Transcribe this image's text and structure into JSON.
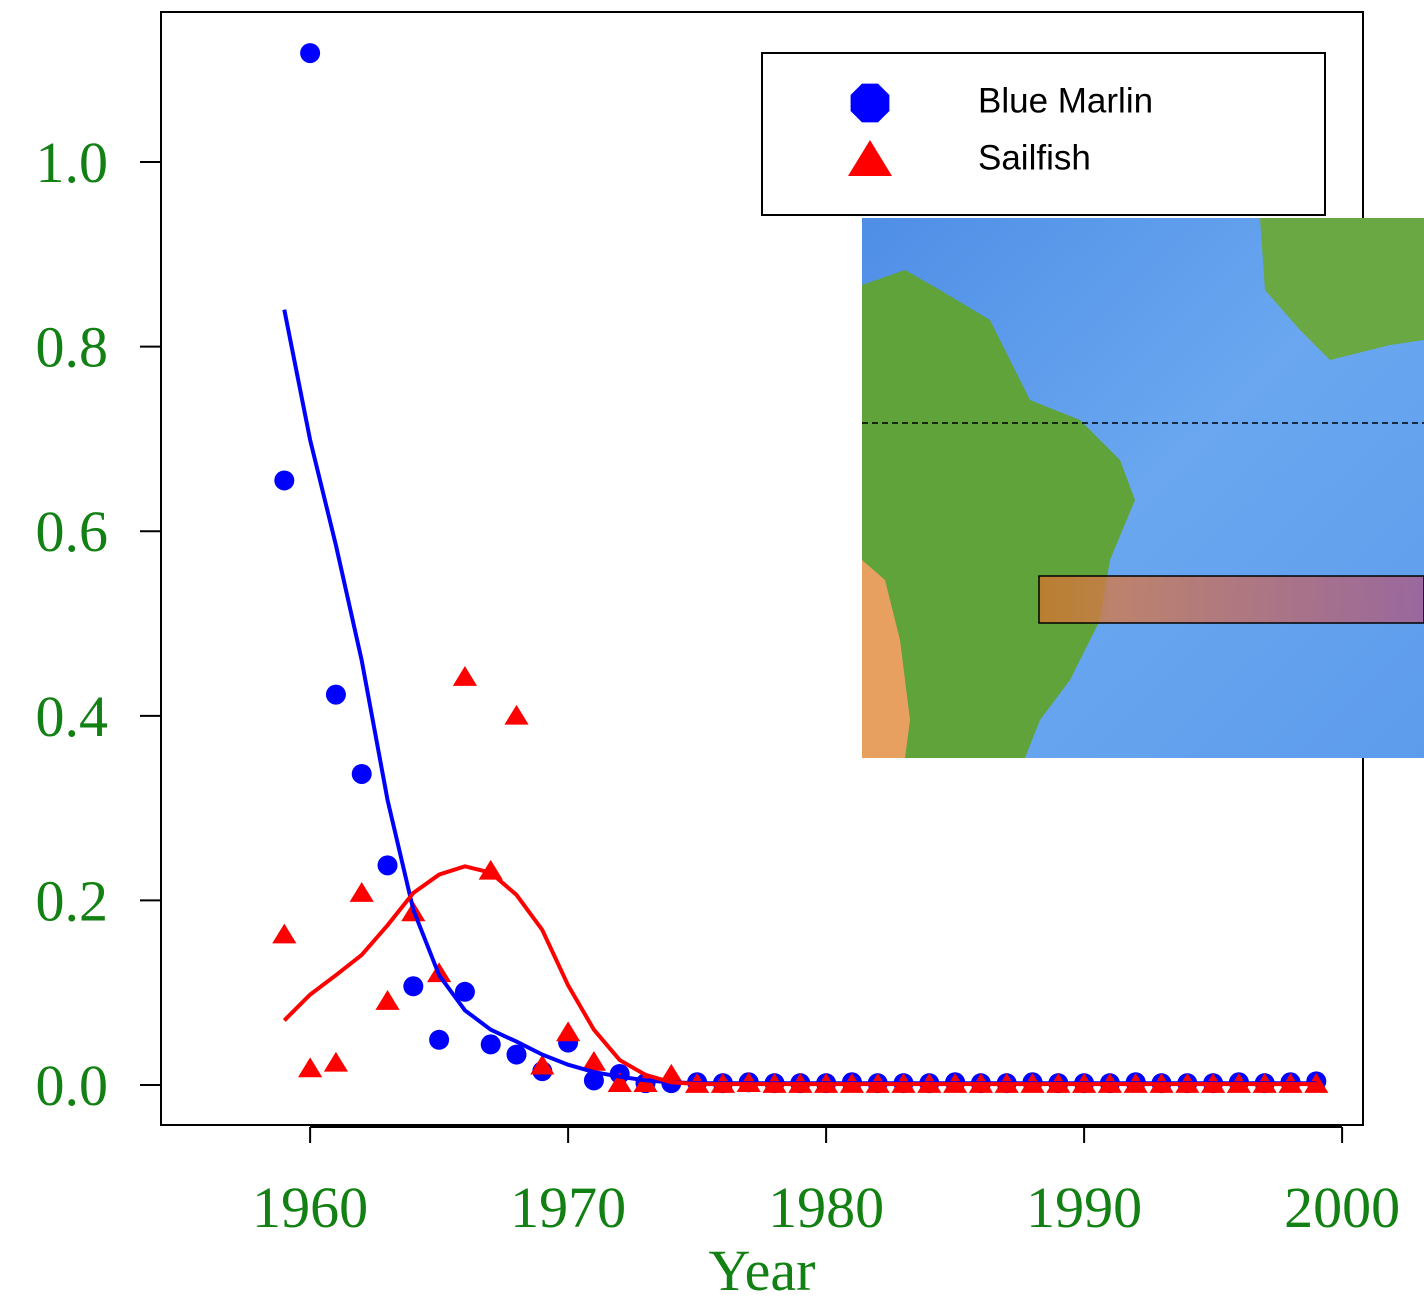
{
  "chart_data": {
    "type": "scatter",
    "xlabel": "Year",
    "x": [
      1959,
      1960,
      1961,
      1962,
      1963,
      1964,
      1965,
      1966,
      1967,
      1968,
      1969,
      1970,
      1971,
      1972,
      1973,
      1974,
      1975,
      1976,
      1977,
      1978,
      1979,
      1980,
      1981,
      1982,
      1983,
      1984,
      1985,
      1986,
      1987,
      1988,
      1989,
      1990,
      1991,
      1992,
      1993,
      1994,
      1995,
      1996,
      1997,
      1998,
      1999
    ],
    "series": [
      {
        "name": "Blue Marlin",
        "color": "#0000ff",
        "marker": "circle",
        "values": [
          0.655,
          1.118,
          0.423,
          0.337,
          0.238,
          0.107,
          0.049,
          0.101,
          0.044,
          0.033,
          0.015,
          0.046,
          0.005,
          0.012,
          0.002,
          0.002,
          0.003,
          0.002,
          0.003,
          0.002,
          0.002,
          0.002,
          0.003,
          0.002,
          0.002,
          0.002,
          0.003,
          0.002,
          0.002,
          0.003,
          0.002,
          0.002,
          0.002,
          0.003,
          0.002,
          0.002,
          0.002,
          0.003,
          0.002,
          0.003,
          0.004
        ],
        "fit": [
          0.84,
          0.699,
          0.585,
          0.46,
          0.309,
          0.19,
          0.119,
          0.081,
          0.06,
          0.047,
          0.033,
          0.022,
          0.014,
          0.009,
          0.005,
          0.003,
          0.002,
          0.002,
          0.002,
          0.002,
          0.002,
          0.002,
          0.002,
          0.002,
          0.002,
          0.002,
          0.002,
          0.002,
          0.002,
          0.002,
          0.002,
          0.002,
          0.002,
          0.002,
          0.002,
          0.002,
          0.002,
          0.002,
          0.002,
          0.002,
          0.002
        ]
      },
      {
        "name": "Sailfish",
        "color": "#ff0000",
        "marker": "triangle",
        "values": [
          0.163,
          0.018,
          0.024,
          0.208,
          0.091,
          0.187,
          0.121,
          0.442,
          0.232,
          0.4,
          0.021,
          0.057,
          0.025,
          0.002,
          0.002,
          0.011,
          0.001,
          0.001,
          0.002,
          0.001,
          0.001,
          0.001,
          0.001,
          0.001,
          0.001,
          0.001,
          0.001,
          0.001,
          0.001,
          0.001,
          0.001,
          0.001,
          0.001,
          0.001,
          0.001,
          0.001,
          0.001,
          0.001,
          0.001,
          0.001,
          0.001
        ],
        "fit": [
          0.07,
          0.098,
          0.119,
          0.141,
          0.173,
          0.208,
          0.228,
          0.237,
          0.23,
          0.206,
          0.168,
          0.108,
          0.06,
          0.027,
          0.011,
          0.003,
          0.001,
          0.001,
          0.001,
          0.001,
          0.001,
          0.001,
          0.001,
          0.001,
          0.001,
          0.001,
          0.001,
          0.001,
          0.001,
          0.001,
          0.001,
          0.001,
          0.001,
          0.001,
          0.001,
          0.001,
          0.001,
          0.001,
          0.001,
          0.001,
          0.001
        ]
      }
    ],
    "xlim": [
      1954.22,
      2000.81
    ],
    "xticks": [
      1960,
      1970,
      1980,
      1990,
      2000
    ],
    "ylim": [
      -0.0433,
      1.1625
    ],
    "yticks": [
      {
        "value": 0,
        "label": "0.0"
      },
      0.2,
      0.4,
      0.6,
      0.8,
      {
        "value": 1,
        "label": "1.0"
      }
    ],
    "legend": "top-right",
    "grid": false
  }
}
